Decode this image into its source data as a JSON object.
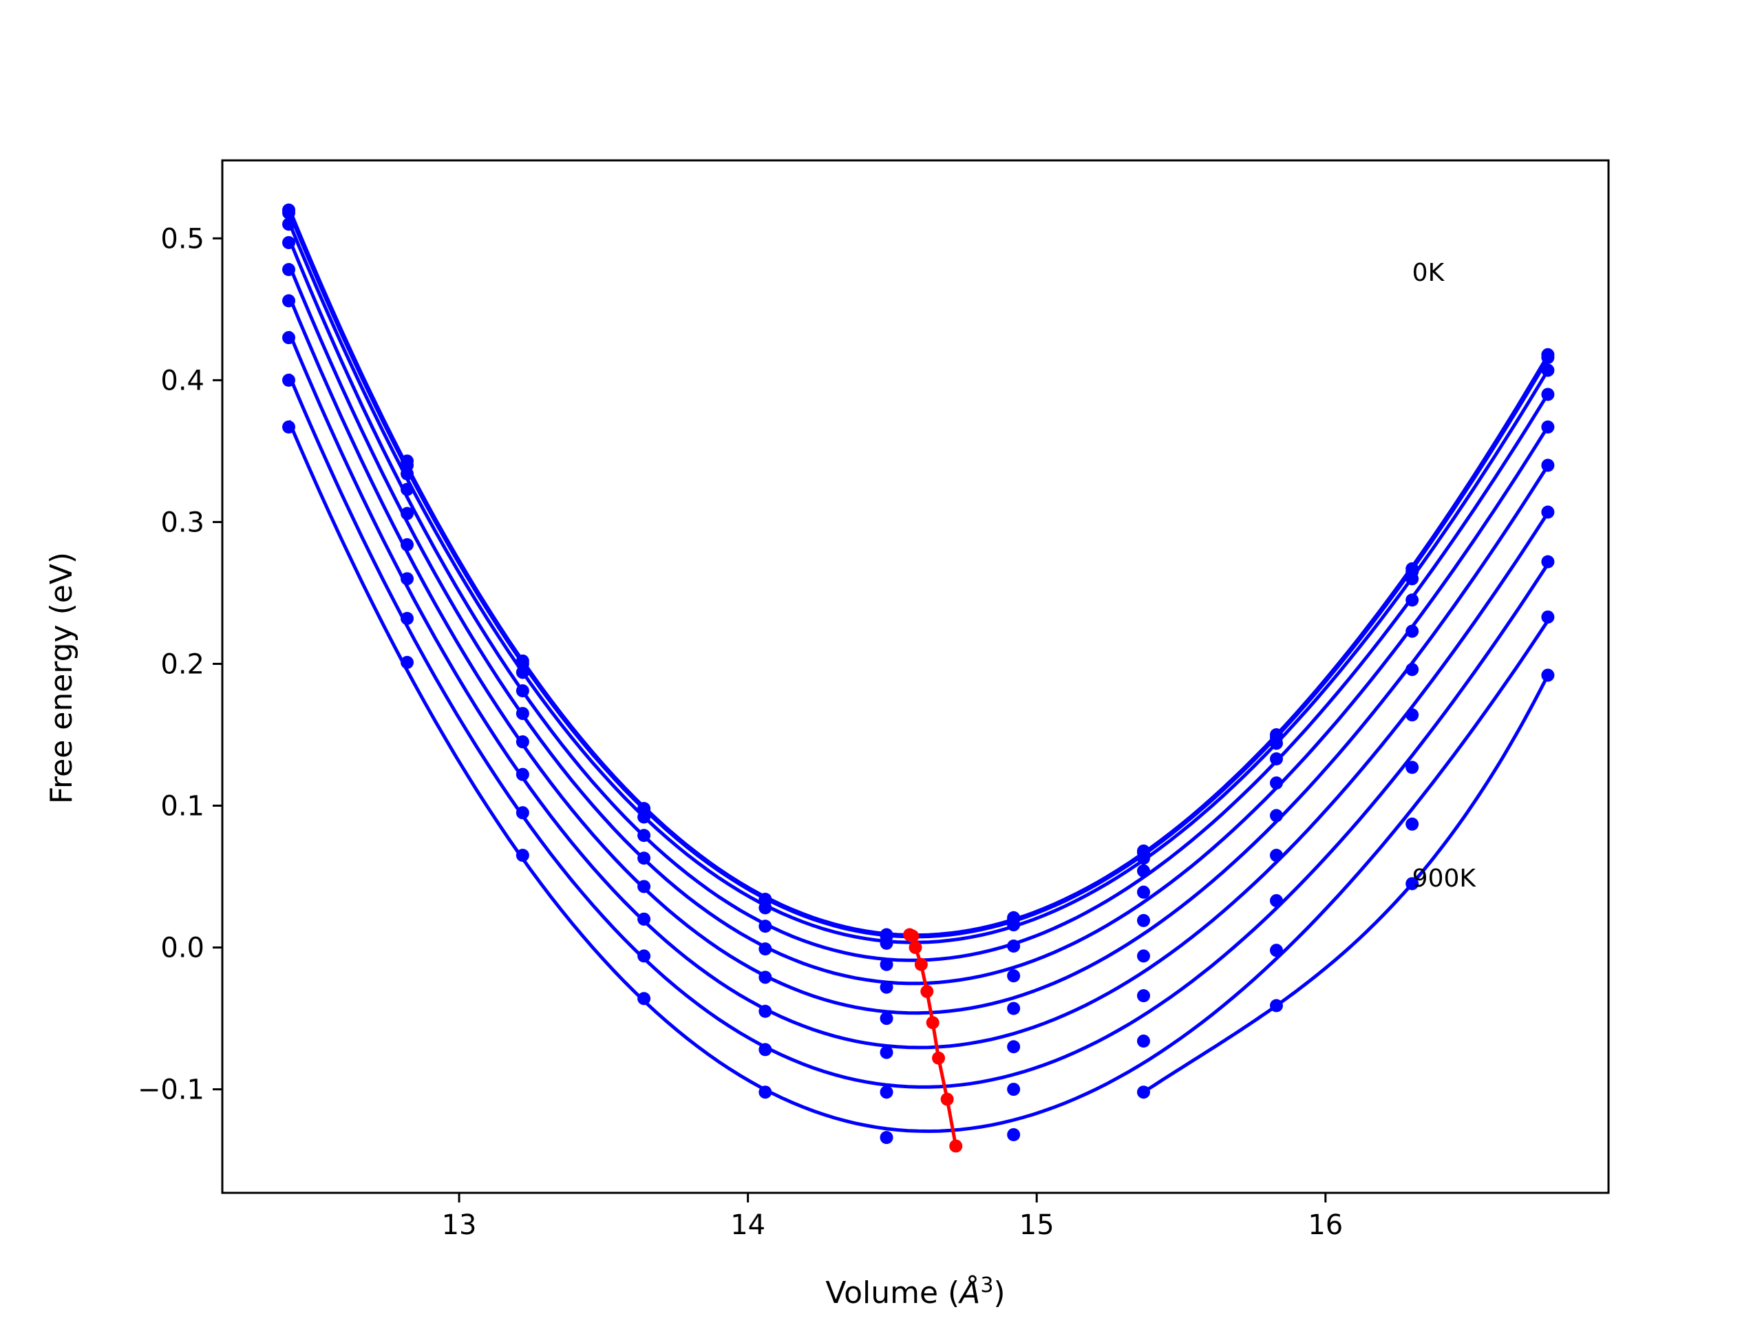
{
  "chart_data": {
    "type": "line",
    "xlabel_main": "Volume (",
    "xlabel_unit": "Å",
    "xlabel_exp": "3",
    "xlabel_end": ")",
    "ylabel": "Free energy (eV)",
    "xlim": [
      12.18,
      16.98
    ],
    "ylim": [
      -0.173,
      0.555
    ],
    "xticks": [
      {
        "value": 13,
        "label": "13"
      },
      {
        "value": 14,
        "label": "14"
      },
      {
        "value": 15,
        "label": "15"
      },
      {
        "value": 16,
        "label": "16"
      }
    ],
    "yticks": [
      {
        "value": -0.1,
        "label": "−0.1"
      },
      {
        "value": 0.0,
        "label": "0.0"
      },
      {
        "value": 0.1,
        "label": "0.1"
      },
      {
        "value": 0.2,
        "label": "0.2"
      },
      {
        "value": 0.3,
        "label": "0.3"
      },
      {
        "value": 0.4,
        "label": "0.4"
      },
      {
        "value": 0.5,
        "label": "0.5"
      }
    ],
    "annotations": [
      {
        "text": "0K",
        "x": 16.3,
        "y": 0.47
      },
      {
        "text": "900K",
        "x": 16.3,
        "y": 0.043
      }
    ],
    "x": [
      12.41,
      12.82,
      13.22,
      13.64,
      14.06,
      14.48,
      14.92,
      15.37,
      15.83,
      16.3,
      16.77
    ],
    "series": [
      {
        "color": "#0000ff",
        "values": [
          0.52,
          0.343,
          0.202,
          0.098,
          0.034,
          0.009,
          0.021,
          0.068,
          0.15,
          0.267,
          0.418
        ]
      },
      {
        "color": "#0000ff",
        "values": [
          0.518,
          0.34,
          0.2,
          0.097,
          0.033,
          0.008,
          0.02,
          0.067,
          0.148,
          0.265,
          0.416
        ]
      },
      {
        "color": "#0000ff",
        "values": [
          0.51,
          0.334,
          0.194,
          0.092,
          0.028,
          0.003,
          0.016,
          0.063,
          0.144,
          0.26,
          0.407
        ]
      },
      {
        "color": "#0000ff",
        "values": [
          0.497,
          0.323,
          0.181,
          0.079,
          0.015,
          -0.012,
          0.001,
          0.054,
          0.133,
          0.245,
          0.39
        ]
      },
      {
        "color": "#0000ff",
        "values": [
          0.478,
          0.306,
          0.165,
          0.063,
          -0.001,
          -0.028,
          -0.02,
          0.039,
          0.116,
          0.223,
          0.367
        ]
      },
      {
        "color": "#0000ff",
        "values": [
          0.456,
          0.284,
          0.145,
          0.043,
          -0.021,
          -0.05,
          -0.043,
          0.019,
          0.093,
          0.196,
          0.34
        ]
      },
      {
        "color": "#0000ff",
        "values": [
          0.43,
          0.26,
          0.122,
          0.02,
          -0.045,
          -0.074,
          -0.07,
          -0.006,
          0.065,
          0.164,
          0.307
        ]
      },
      {
        "color": "#0000ff",
        "values": [
          0.4,
          0.232,
          0.095,
          -0.006,
          -0.072,
          -0.102,
          -0.1,
          -0.034,
          0.033,
          0.127,
          0.272
        ]
      },
      {
        "color": "#0000ff",
        "values": [
          0.367,
          0.201,
          0.065,
          -0.036,
          -0.102,
          -0.134,
          -0.132,
          -0.066,
          -0.002,
          0.087,
          0.233
        ]
      },
      {
        "color": "#0000ff",
        "values": [
          null,
          null,
          null,
          null,
          null,
          null,
          null,
          -0.102,
          -0.041,
          0.045,
          0.192
        ]
      }
    ],
    "minimum_path": {
      "color": "#ff0000",
      "x": [
        14.56,
        14.57,
        14.58,
        14.6,
        14.62,
        14.64,
        14.66,
        14.69,
        14.72
      ],
      "y": [
        0.009,
        0.008,
        0.0,
        -0.012,
        -0.031,
        -0.053,
        -0.078,
        -0.107,
        -0.14
      ]
    }
  }
}
